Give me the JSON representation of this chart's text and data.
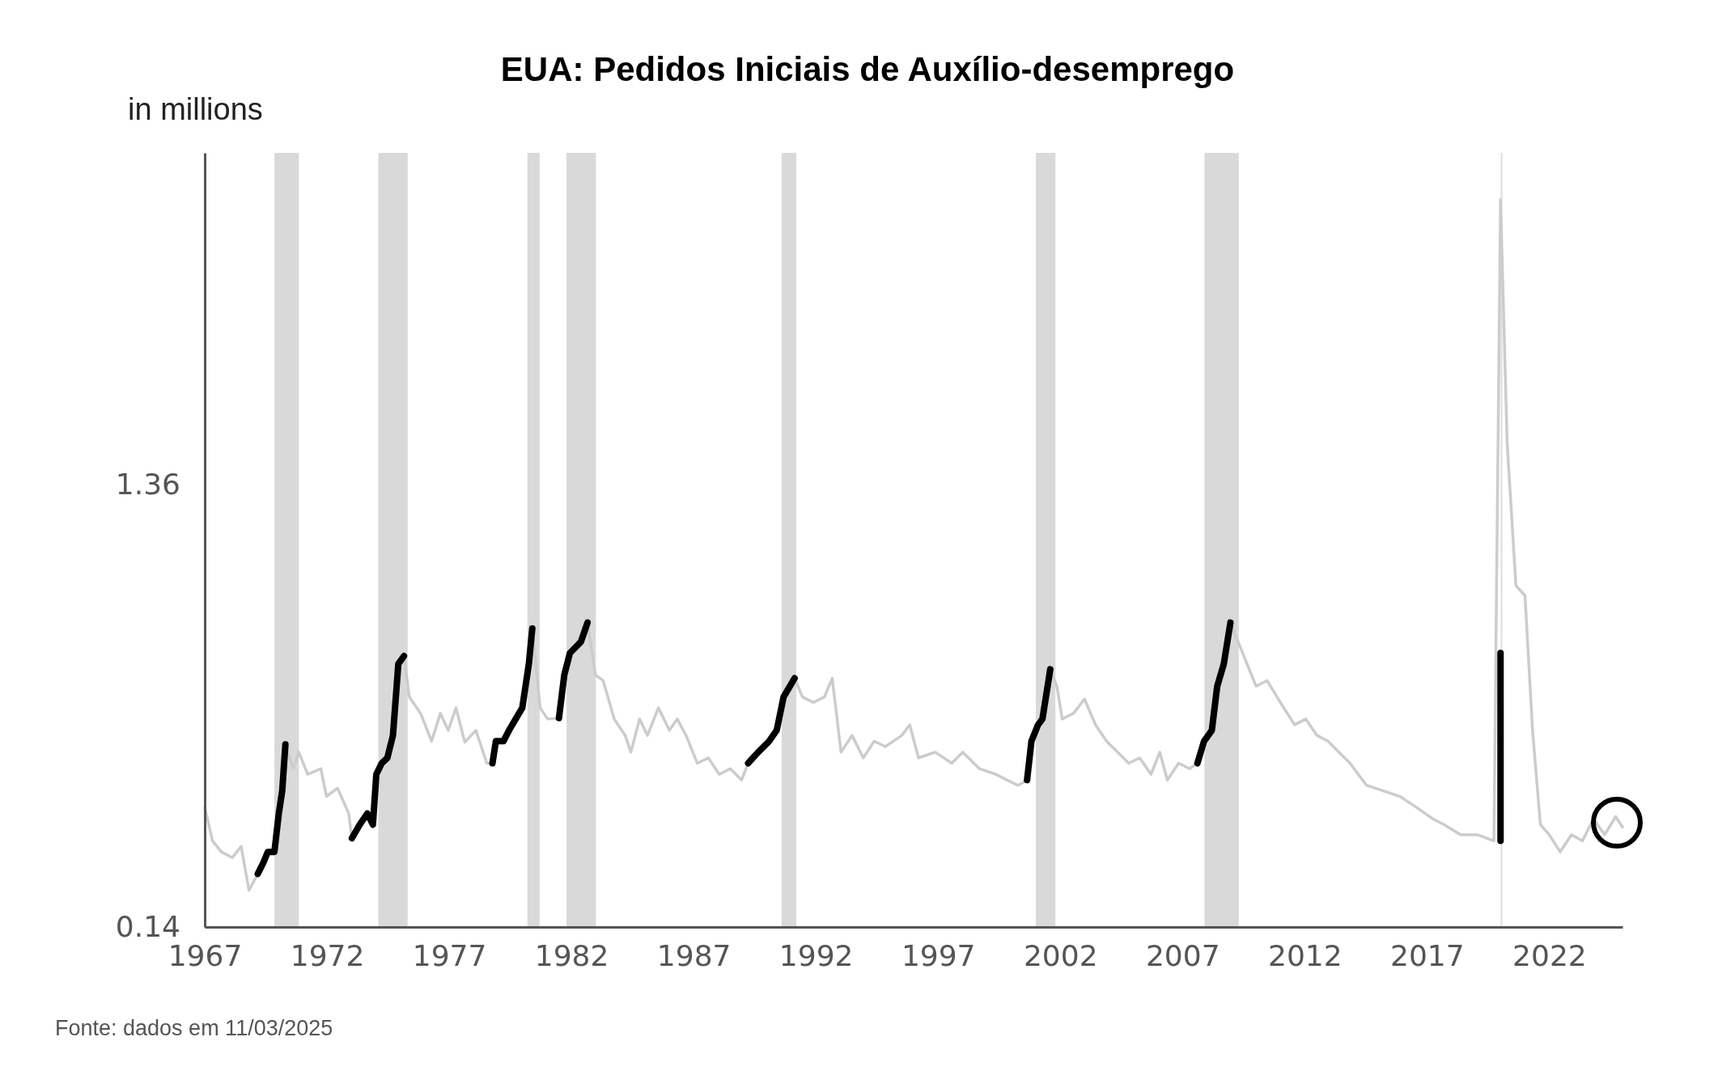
{
  "chart_data": {
    "type": "line",
    "title": "EUA: Pedidos Iniciais de Auxílio-desemprego",
    "ylabel": "in millions",
    "log": "y",
    "xlim": [
      1967,
      2025
    ],
    "xticks": [
      1967,
      1972,
      1977,
      1982,
      1987,
      1992,
      1997,
      2002,
      2007,
      2012,
      2017,
      2022
    ],
    "ylim": [
      0.14,
      7.5
    ],
    "yticks": [
      0.14,
      1.36
    ],
    "annotations": [
      "Fonte: dados em 11/03/2025"
    ],
    "bands": [
      {
        "axis": "x",
        "from": 1969.85,
        "to": 1970.85,
        "color": "#d9d9d9"
      },
      {
        "axis": "x",
        "from": 1974.1,
        "to": 1975.3,
        "color": "#d9d9d9"
      },
      {
        "axis": "x",
        "from": 1980.2,
        "to": 1980.7,
        "color": "#d9d9d9"
      },
      {
        "axis": "x",
        "from": 1981.8,
        "to": 1983.0,
        "color": "#d9d9d9"
      },
      {
        "axis": "x",
        "from": 1990.6,
        "to": 1991.2,
        "color": "#d9d9d9"
      },
      {
        "axis": "x",
        "from": 2001.0,
        "to": 2001.8,
        "color": "#d9d9d9"
      },
      {
        "axis": "x",
        "from": 2007.9,
        "to": 2009.3,
        "color": "#d9d9d9"
      }
    ],
    "ref_lines": [
      {
        "axis": "x",
        "value": 2020.05,
        "color": "#dddddd"
      }
    ],
    "series": [
      {
        "color": "#cccccc",
        "x": [
          1967.0,
          1967.32,
          1967.68,
          1968.13,
          1968.49,
          1968.81,
          1969.17,
          1969.4,
          1969.58,
          1969.85,
          1970.03,
          1970.17,
          1970.3,
          1970.62,
          1970.85,
          1971.21,
          1971.75,
          1971.98,
          1972.43,
          1972.89,
          1973.02,
          1973.34,
          1973.65,
          1973.88,
          1974.02,
          1974.24,
          1974.47,
          1974.7,
          1974.92,
          1975.15,
          1975.37,
          1975.83,
          1976.28,
          1976.64,
          1976.96,
          1977.28,
          1977.64,
          1978.09,
          1978.54,
          1978.77,
          1978.91,
          1979.22,
          1979.45,
          1979.72,
          1979.99,
          1980.26,
          1980.4,
          1980.72,
          1981.03,
          1981.49,
          1981.71,
          1981.94,
          1982.17,
          1982.39,
          1982.66,
          1982.98,
          1983.3,
          1983.75,
          1984.2,
          1984.43,
          1984.79,
          1985.11,
          1985.56,
          1986.01,
          1986.33,
          1986.69,
          1987.15,
          1987.6,
          1988.05,
          1988.5,
          1988.96,
          1989.23,
          1989.64,
          1990.09,
          1990.4,
          1990.68,
          1991.13,
          1991.45,
          1991.9,
          1992.35,
          1992.67,
          1993.03,
          1993.48,
          1993.94,
          1994.39,
          1994.84,
          1995.52,
          1995.84,
          1996.2,
          1996.88,
          1997.56,
          1998.01,
          1998.69,
          1999.37,
          1999.82,
          2000.27,
          2000.64,
          2000.82,
          2001.09,
          2001.27,
          2001.59,
          2001.86,
          2002.08,
          2002.54,
          2002.99,
          2003.44,
          2003.89,
          2004.35,
          2004.8,
          2005.25,
          2005.71,
          2006.07,
          2006.38,
          2006.84,
          2007.29,
          2007.61,
          2007.88,
          2008.2,
          2008.42,
          2008.69,
          2008.96,
          2009.55,
          2010.01,
          2010.46,
          2011.14,
          2011.59,
          2012.04,
          2012.5,
          2012.95,
          2013.4,
          2013.85,
          2014.53,
          2015.21,
          2015.89,
          2016.57,
          2017.25,
          2017.7,
          2018.38,
          2019.06,
          2019.74,
          2020.01,
          2020.28,
          2020.64,
          2021.01,
          2021.32,
          2021.64,
          2022.0,
          2022.45,
          2022.91,
          2023.36,
          2023.81,
          2024.27,
          2024.72,
          2025.0
        ],
        "values": [
          0.259,
          0.218,
          0.206,
          0.2,
          0.212,
          0.169,
          0.184,
          0.195,
          0.206,
          0.206,
          0.251,
          0.282,
          0.358,
          0.316,
          0.344,
          0.307,
          0.316,
          0.274,
          0.286,
          0.251,
          0.221,
          0.237,
          0.251,
          0.237,
          0.307,
          0.325,
          0.334,
          0.375,
          0.542,
          0.564,
          0.457,
          0.42,
          0.364,
          0.42,
          0.385,
          0.432,
          0.362,
          0.385,
          0.325,
          0.325,
          0.364,
          0.364,
          0.385,
          0.408,
          0.432,
          0.542,
          0.65,
          0.432,
          0.408,
          0.41,
          0.512,
          0.573,
          0.59,
          0.607,
          0.67,
          0.512,
          0.497,
          0.408,
          0.375,
          0.344,
          0.408,
          0.375,
          0.432,
          0.385,
          0.408,
          0.375,
          0.325,
          0.334,
          0.307,
          0.316,
          0.298,
          0.325,
          0.344,
          0.364,
          0.385,
          0.457,
          0.503,
          0.457,
          0.444,
          0.457,
          0.503,
          0.344,
          0.375,
          0.334,
          0.364,
          0.354,
          0.375,
          0.396,
          0.334,
          0.344,
          0.325,
          0.344,
          0.316,
          0.307,
          0.298,
          0.29,
          0.298,
          0.364,
          0.396,
          0.408,
          0.527,
          0.483,
          0.408,
          0.42,
          0.452,
          0.396,
          0.364,
          0.344,
          0.325,
          0.334,
          0.307,
          0.344,
          0.298,
          0.325,
          0.316,
          0.325,
          0.364,
          0.385,
          0.483,
          0.542,
          0.67,
          0.557,
          0.483,
          0.497,
          0.432,
          0.396,
          0.408,
          0.375,
          0.364,
          0.344,
          0.325,
          0.29,
          0.282,
          0.274,
          0.259,
          0.244,
          0.237,
          0.225,
          0.225,
          0.218,
          5.9,
          1.69,
          0.81,
          0.77,
          0.385,
          0.237,
          0.225,
          0.206,
          0.225,
          0.218,
          0.244,
          0.225,
          0.247,
          0.234
        ]
      },
      {
        "color": "#000000",
        "x": [
          1969.17,
          1969.4,
          1969.58,
          1969.85,
          1970.03,
          1970.17,
          1970.3,
          1971.0,
          1973.02,
          1973.34,
          1973.65,
          1973.88,
          1974.02,
          1974.24,
          1974.47,
          1974.7,
          1974.92,
          1975.15,
          1976.0,
          1978.77,
          1978.91,
          1979.22,
          1979.45,
          1979.72,
          1979.99,
          1980.26,
          1980.4,
          1981.0,
          1981.49,
          1981.71,
          1981.94,
          1982.17,
          1982.39,
          1982.66,
          1985.0,
          1989.23,
          1989.64,
          1990.09,
          1990.4,
          1990.68,
          1991.13,
          1995.0,
          2000.64,
          2000.82,
          2001.09,
          2001.27,
          2001.59,
          2005.0,
          2007.61,
          2007.88,
          2008.2,
          2008.42,
          2008.69,
          2008.96,
          2015.0,
          2020.01,
          2020.01
        ],
        "values": [
          0.184,
          0.195,
          0.206,
          0.206,
          0.251,
          0.282,
          0.358,
          null,
          0.221,
          0.237,
          0.251,
          0.237,
          0.307,
          0.325,
          0.334,
          0.375,
          0.542,
          0.564,
          null,
          0.325,
          0.364,
          0.364,
          0.385,
          0.408,
          0.432,
          0.542,
          0.65,
          null,
          0.41,
          0.512,
          0.573,
          0.59,
          0.607,
          0.67,
          null,
          0.325,
          0.344,
          0.364,
          0.385,
          0.457,
          0.503,
          null,
          0.298,
          0.364,
          0.396,
          0.408,
          0.527,
          null,
          0.325,
          0.364,
          0.385,
          0.483,
          0.542,
          0.67,
          null,
          0.218,
          0.573
        ]
      }
    ]
  }
}
